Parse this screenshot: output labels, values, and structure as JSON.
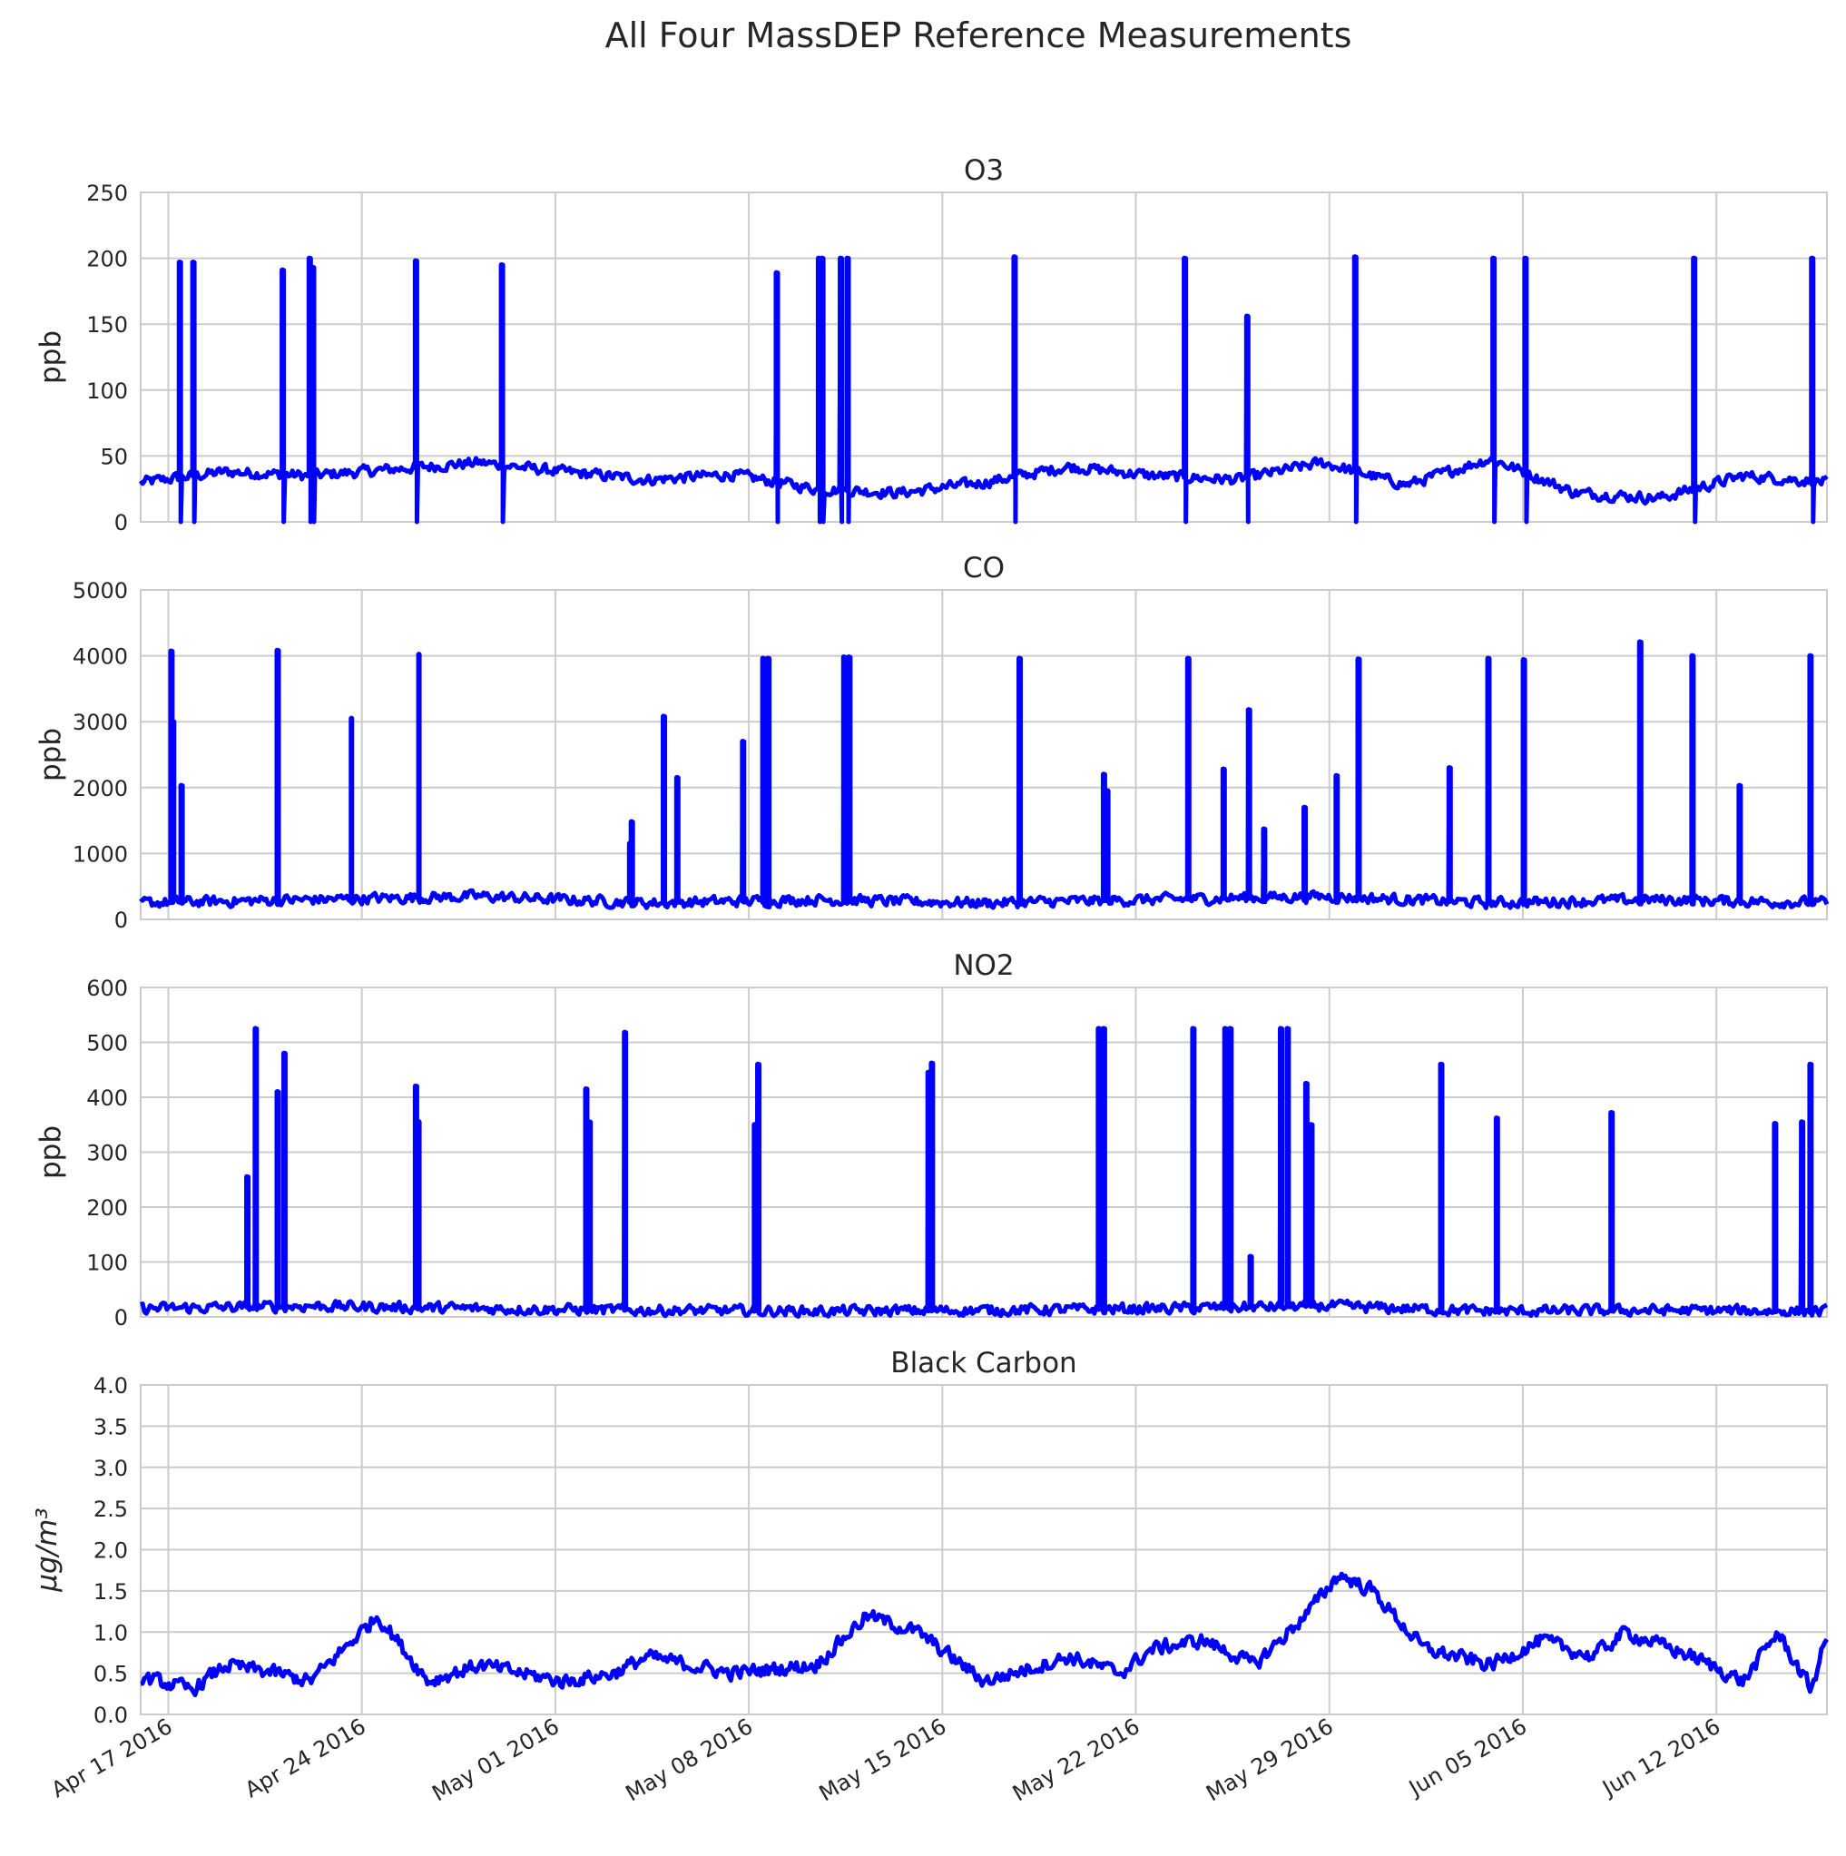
{
  "figure": {
    "title": "All Four MassDEP Reference Measurements"
  },
  "style": {
    "line_color": "#0000ff",
    "grid_color": "#cccccc",
    "axes_color": "#cccccc",
    "text_color": "#262626"
  },
  "x_axis": {
    "start": "2016-04-16",
    "end": "2016-06-16",
    "ticks": [
      "Apr 17 2016",
      "Apr 24 2016",
      "May 01 2016",
      "May 08 2016",
      "May 15 2016",
      "May 22 2016",
      "May 29 2016",
      "Jun 05 2016",
      "Jun 12 2016"
    ],
    "tick_dates": [
      "2016-04-17",
      "2016-04-24",
      "2016-05-01",
      "2016-05-08",
      "2016-05-15",
      "2016-05-22",
      "2016-05-29",
      "2016-06-05",
      "2016-06-12"
    ]
  },
  "chart_data": [
    {
      "type": "line",
      "title": "O3",
      "ylabel": "ppb",
      "ylim": [
        0,
        250
      ],
      "yticks": [
        "0",
        "50",
        "100",
        "150",
        "200",
        "250"
      ],
      "grid": true,
      "baseline": [
        [
          0,
          30
        ],
        [
          0.05,
          38
        ],
        [
          0.1,
          35
        ],
        [
          0.15,
          40
        ],
        [
          0.2,
          45
        ],
        [
          0.25,
          38
        ],
        [
          0.3,
          32
        ],
        [
          0.35,
          36
        ],
        [
          0.4,
          25
        ],
        [
          0.45,
          22
        ],
        [
          0.5,
          30
        ],
        [
          0.55,
          42
        ],
        [
          0.6,
          35
        ],
        [
          0.65,
          32
        ],
        [
          0.7,
          45
        ],
        [
          0.75,
          28
        ],
        [
          0.8,
          48
        ],
        [
          0.85,
          22
        ],
        [
          0.9,
          18
        ],
        [
          0.95,
          35
        ],
        [
          1,
          30
        ]
      ],
      "spikes": [
        [
          0.023,
          197
        ],
        [
          0.031,
          197
        ],
        [
          0.084,
          191
        ],
        [
          0.1,
          200
        ],
        [
          0.102,
          193
        ],
        [
          0.163,
          198
        ],
        [
          0.214,
          195
        ],
        [
          0.377,
          189
        ],
        [
          0.402,
          200
        ],
        [
          0.404,
          200
        ],
        [
          0.415,
          200
        ],
        [
          0.419,
          200
        ],
        [
          0.518,
          201
        ],
        [
          0.619,
          200
        ],
        [
          0.656,
          156
        ],
        [
          0.72,
          201
        ],
        [
          0.802,
          200
        ],
        [
          0.821,
          200
        ],
        [
          0.921,
          200
        ],
        [
          0.991,
          200
        ]
      ]
    },
    {
      "type": "line",
      "title": "CO",
      "ylabel": "ppb",
      "ylim": [
        0,
        5000
      ],
      "yticks": [
        "0",
        "1000",
        "2000",
        "3000",
        "4000",
        "5000"
      ],
      "grid": true,
      "baseline": [
        [
          0,
          250
        ],
        [
          0.1,
          300
        ],
        [
          0.2,
          350
        ],
        [
          0.3,
          250
        ],
        [
          0.4,
          300
        ],
        [
          0.5,
          250
        ],
        [
          0.6,
          300
        ],
        [
          0.7,
          350
        ],
        [
          0.8,
          250
        ],
        [
          0.9,
          300
        ],
        [
          1,
          250
        ]
      ],
      "spikes": [
        [
          0.018,
          4070
        ],
        [
          0.019,
          3000
        ],
        [
          0.024,
          2030
        ],
        [
          0.081,
          4080
        ],
        [
          0.125,
          3050
        ],
        [
          0.165,
          4020
        ],
        [
          0.291,
          1480
        ],
        [
          0.29,
          1150
        ],
        [
          0.31,
          3080
        ],
        [
          0.318,
          2150
        ],
        [
          0.357,
          2700
        ],
        [
          0.369,
          3960
        ],
        [
          0.372,
          3960
        ],
        [
          0.417,
          3980
        ],
        [
          0.42,
          3980
        ],
        [
          0.521,
          3960
        ],
        [
          0.571,
          2200
        ],
        [
          0.573,
          1950
        ],
        [
          0.621,
          3960
        ],
        [
          0.642,
          2280
        ],
        [
          0.657,
          3180
        ],
        [
          0.666,
          1370
        ],
        [
          0.69,
          1700
        ],
        [
          0.709,
          2180
        ],
        [
          0.722,
          3950
        ],
        [
          0.776,
          2300
        ],
        [
          0.799,
          3960
        ],
        [
          0.82,
          3940
        ],
        [
          0.889,
          4210
        ],
        [
          0.92,
          4000
        ],
        [
          0.948,
          2030
        ],
        [
          0.99,
          4000
        ]
      ]
    },
    {
      "type": "line",
      "title": "NO2",
      "ylabel": "ppb",
      "ylim": [
        0,
        600
      ],
      "yticks": [
        "0",
        "100",
        "200",
        "300",
        "400",
        "500",
        "600"
      ],
      "grid": true,
      "baseline": [
        [
          0,
          15
        ],
        [
          0.1,
          20
        ],
        [
          0.2,
          15
        ],
        [
          0.3,
          12
        ],
        [
          0.4,
          10
        ],
        [
          0.5,
          12
        ],
        [
          0.6,
          15
        ],
        [
          0.7,
          20
        ],
        [
          0.8,
          10
        ],
        [
          0.9,
          12
        ],
        [
          1,
          10
        ]
      ],
      "spikes": [
        [
          0.063,
          255
        ],
        [
          0.068,
          525
        ],
        [
          0.081,
          410
        ],
        [
          0.085,
          480
        ],
        [
          0.163,
          420
        ],
        [
          0.165,
          355
        ],
        [
          0.264,
          415
        ],
        [
          0.266,
          355
        ],
        [
          0.287,
          518
        ],
        [
          0.364,
          350
        ],
        [
          0.366,
          460
        ],
        [
          0.467,
          445
        ],
        [
          0.469,
          462
        ],
        [
          0.568,
          525
        ],
        [
          0.571,
          525
        ],
        [
          0.624,
          525
        ],
        [
          0.643,
          525
        ],
        [
          0.646,
          525
        ],
        [
          0.658,
          110
        ],
        [
          0.676,
          525
        ],
        [
          0.68,
          525
        ],
        [
          0.691,
          425
        ],
        [
          0.694,
          350
        ],
        [
          0.771,
          460
        ],
        [
          0.804,
          362
        ],
        [
          0.872,
          372
        ],
        [
          0.969,
          352
        ],
        [
          0.985,
          355
        ],
        [
          0.99,
          460
        ]
      ]
    },
    {
      "type": "line",
      "title": "Black Carbon",
      "ylabel": "μg/m³",
      "ylim": [
        0,
        4.0
      ],
      "yticks": [
        "0.0",
        "0.5",
        "1.0",
        "1.5",
        "2.0",
        "2.5",
        "3.0",
        "3.5",
        "4.0"
      ],
      "grid": true,
      "baseline": [
        [
          0,
          0.45
        ],
        [
          0.03,
          0.3
        ],
        [
          0.05,
          0.6
        ],
        [
          0.08,
          0.5
        ],
        [
          0.1,
          0.4
        ],
        [
          0.12,
          0.8
        ],
        [
          0.14,
          1.2
        ],
        [
          0.17,
          0.4
        ],
        [
          0.2,
          0.6
        ],
        [
          0.25,
          0.4
        ],
        [
          0.28,
          0.5
        ],
        [
          0.3,
          0.7
        ],
        [
          0.35,
          0.5
        ],
        [
          0.4,
          0.6
        ],
        [
          0.43,
          1.2
        ],
        [
          0.46,
          1.0
        ],
        [
          0.5,
          0.4
        ],
        [
          0.55,
          0.7
        ],
        [
          0.58,
          0.5
        ],
        [
          0.6,
          0.8
        ],
        [
          0.63,
          0.9
        ],
        [
          0.66,
          0.6
        ],
        [
          0.69,
          1.2
        ],
        [
          0.71,
          1.7
        ],
        [
          0.73,
          1.5
        ],
        [
          0.76,
          0.8
        ],
        [
          0.8,
          0.6
        ],
        [
          0.83,
          0.9
        ],
        [
          0.86,
          0.7
        ],
        [
          0.88,
          1.0
        ],
        [
          0.92,
          0.7
        ],
        [
          0.95,
          0.4
        ],
        [
          0.97,
          1.0
        ],
        [
          0.99,
          0.3
        ],
        [
          1,
          1.0
        ]
      ]
    }
  ]
}
